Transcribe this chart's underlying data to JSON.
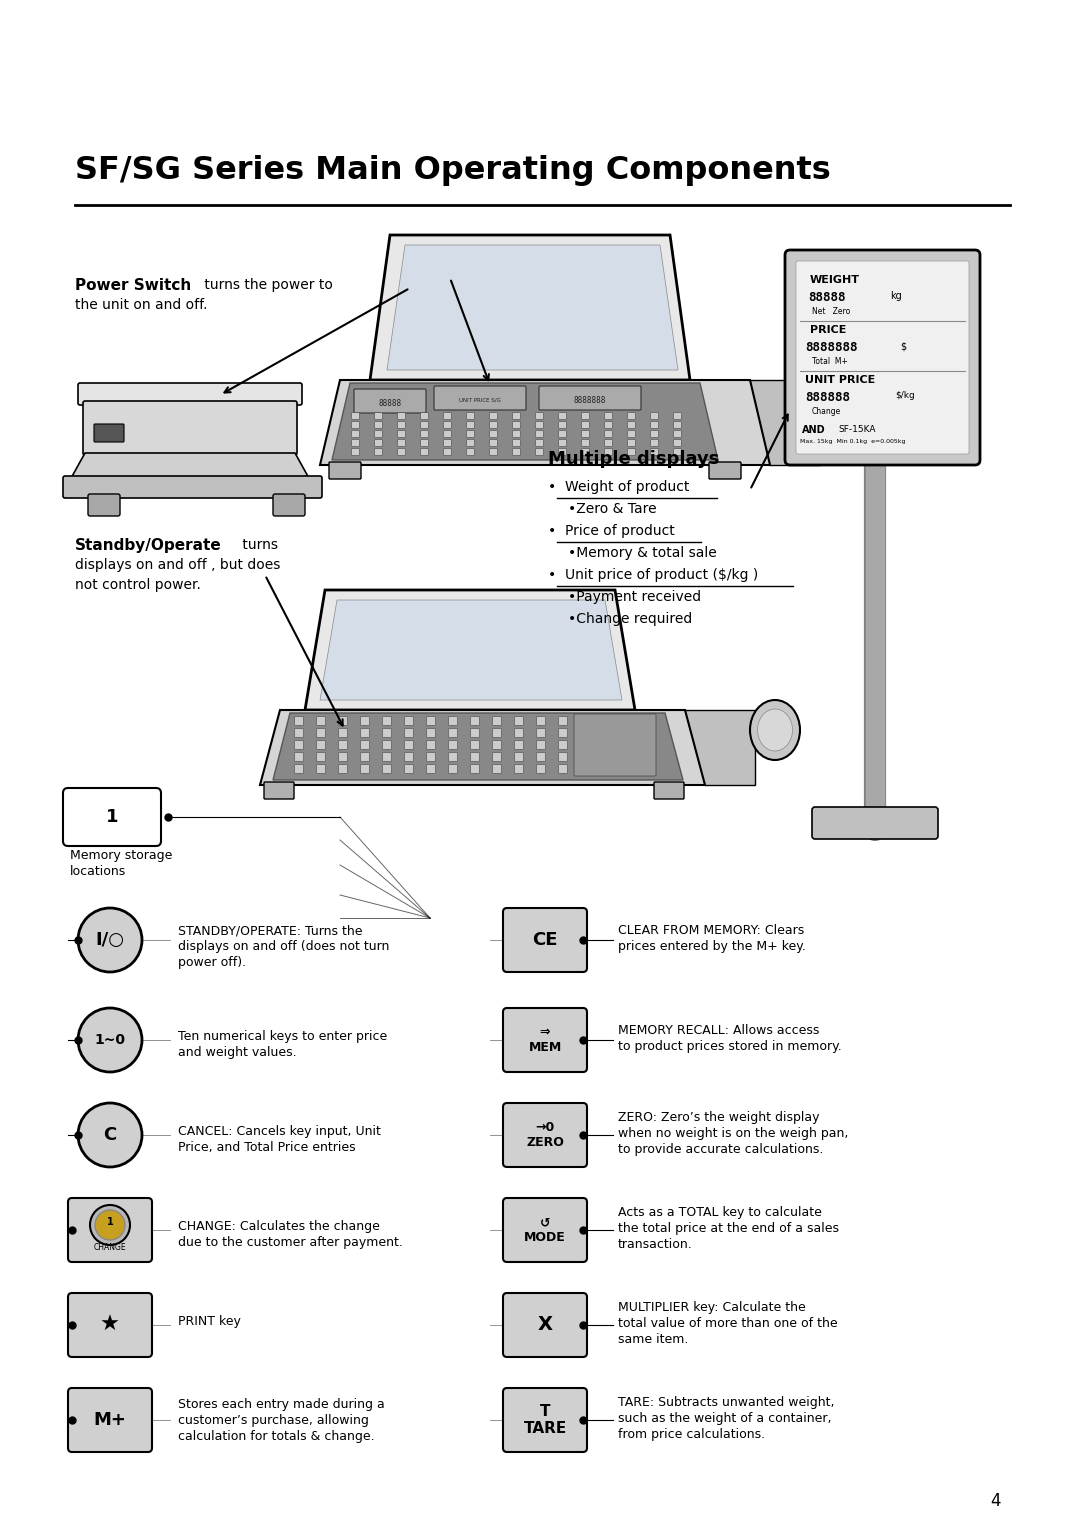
{
  "title": "SF/SG Series Main Operating Components",
  "bg_color": "#ffffff",
  "title_fontsize": 22,
  "page_number": "4",
  "power_switch_bold": "Power Switch",
  "power_switch_rest": " turns the power to",
  "power_switch_line2": "the unit on and off.",
  "standby_bold": "Standby/Operate",
  "standby_rest": " turns",
  "standby_line2": "displays on and off , but does",
  "standby_line3": "not control power.",
  "multiple_displays": "Multiple displays",
  "bullet1": "•  Weight of product",
  "bullet1sub": "•Zero & Tare",
  "bullet2": "•  Price of product",
  "bullet2sub": "•Memory & total sale",
  "bullet3": "•  Unit price of product ($/kg )",
  "bullet3sub1": "•Payment received",
  "bullet3sub2": "•Change required",
  "weight_label": "WEIGHT",
  "weight_val": "88888",
  "weight_unit": "kg",
  "weight_sub": "Net   Zero",
  "price_label": "PRICE",
  "price_val": "8888888",
  "price_unit": "$",
  "price_sub": "Total  M+",
  "unitprice_label": "UNIT PRICE",
  "unitprice_val": "888888",
  "unitprice_unit": "$/kg",
  "unitprice_sub": "Change",
  "and_logo": "AND",
  "model": "SF-15KA",
  "spec": "Max. 15kg  Min 0.1kg  e=0.005kg",
  "mem_num": "1",
  "mem_desc1": "Memory storage",
  "mem_desc2": "locations",
  "lb_standby_lines": [
    "STANDBY/OPERATE: Turns the",
    "displays on and off (does not turn",
    "power off)."
  ],
  "lb_10_lines": [
    "Ten numerical keys to enter price",
    "and weight values."
  ],
  "lb_c_lines": [
    "CANCEL: Cancels key input, Unit",
    "Price, and Total Price entries"
  ],
  "lb_change_lines": [
    "CHANGE: Calculates the change",
    "due to the customer after payment."
  ],
  "lb_print_lines": [
    "PRINT key"
  ],
  "lb_mplus_lines": [
    "Stores each entry made during a",
    "customer’s purchase, allowing",
    "calculation for totals & change."
  ],
  "rb_ce_lines": [
    "CLEAR FROM MEMORY: Clears",
    "prices entered by the M+ key."
  ],
  "rb_mem_lines": [
    "MEMORY RECALL: Allows access",
    "to product prices stored in memory."
  ],
  "rb_zero_lines": [
    "ZERO: Zero’s the weight display",
    "when no weight is on the weigh pan,",
    "to provide accurate calculations."
  ],
  "rb_mode_lines": [
    "Acts as a TOTAL key to calculate",
    "the total price at the end of a sales",
    "transaction."
  ],
  "rb_x_lines": [
    "MULTIPLIER key: Calculate the",
    "total value of more than one of the",
    "same item."
  ],
  "rb_tare_lines": [
    "TARE: Subtracts unwanted weight,",
    "such as the weight of a container,",
    "from price calculations."
  ]
}
